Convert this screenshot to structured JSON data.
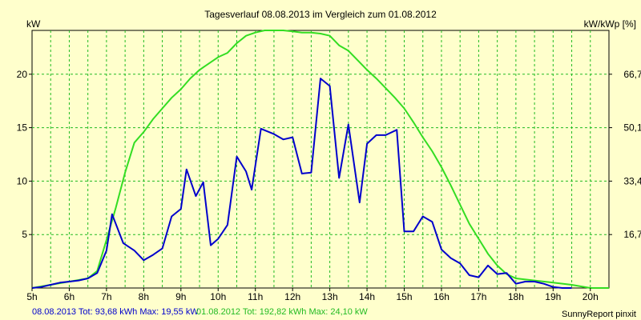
{
  "chart_data": {
    "type": "line",
    "title": "Tagesverlauf 08.08.2013 im Vergleich zum 01.08.2012",
    "ylabel_left": "kW",
    "ylabel_right": "kW/kWp [%]",
    "xlim": [
      5,
      20.5
    ],
    "ylim": [
      0,
      24.1
    ],
    "grid": true,
    "x_ticks": [
      {
        "value": 5,
        "label": "5h"
      },
      {
        "value": 6,
        "label": "6h"
      },
      {
        "value": 7,
        "label": "7h"
      },
      {
        "value": 8,
        "label": "8h"
      },
      {
        "value": 9,
        "label": "9h"
      },
      {
        "value": 10,
        "label": "10h"
      },
      {
        "value": 11,
        "label": "11h"
      },
      {
        "value": 12,
        "label": "12h"
      },
      {
        "value": 13,
        "label": "13h"
      },
      {
        "value": 14,
        "label": "14h"
      },
      {
        "value": 15,
        "label": "15h"
      },
      {
        "value": 16,
        "label": "16h"
      },
      {
        "value": 17,
        "label": "17h"
      },
      {
        "value": 18,
        "label": "18h"
      },
      {
        "value": 19,
        "label": "19h"
      },
      {
        "value": 20,
        "label": "20h"
      }
    ],
    "y_ticks_left": [
      {
        "value": 5,
        "label": "5"
      },
      {
        "value": 10,
        "label": "10"
      },
      {
        "value": 15,
        "label": "15"
      },
      {
        "value": 20,
        "label": "20"
      }
    ],
    "y_ticks_right": [
      {
        "value": 5,
        "label": "16,7"
      },
      {
        "value": 10,
        "label": "33,4"
      },
      {
        "value": 15,
        "label": "50,1"
      },
      {
        "value": 20,
        "label": "66,7"
      }
    ],
    "x_grid": [
      5.5,
      6,
      6.5,
      7,
      7.5,
      8,
      8.5,
      9,
      9.5,
      10,
      10.5,
      11,
      11.5,
      12,
      12.5,
      13,
      13.5,
      14,
      14.5,
      15,
      15.5,
      16,
      16.5,
      17,
      17.5,
      18,
      18.5,
      19,
      19.5,
      20
    ],
    "y_grid": [
      5,
      10,
      15,
      20
    ],
    "series": [
      {
        "name": "08.08.2013",
        "color": "#0000cc",
        "points": [
          [
            5.0,
            0.0
          ],
          [
            5.25,
            0.1
          ],
          [
            5.5,
            0.3
          ],
          [
            5.75,
            0.5
          ],
          [
            6.0,
            0.6
          ],
          [
            6.25,
            0.7
          ],
          [
            6.5,
            0.9
          ],
          [
            6.75,
            1.4
          ],
          [
            7.0,
            3.5
          ],
          [
            7.15,
            6.9
          ],
          [
            7.45,
            4.2
          ],
          [
            7.75,
            3.5
          ],
          [
            8.0,
            2.6
          ],
          [
            8.25,
            3.1
          ],
          [
            8.5,
            3.7
          ],
          [
            8.75,
            6.7
          ],
          [
            9.0,
            7.4
          ],
          [
            9.15,
            11.1
          ],
          [
            9.4,
            8.6
          ],
          [
            9.6,
            9.9
          ],
          [
            9.8,
            4.0
          ],
          [
            10.0,
            4.6
          ],
          [
            10.25,
            5.9
          ],
          [
            10.5,
            12.3
          ],
          [
            10.75,
            10.9
          ],
          [
            10.9,
            9.2
          ],
          [
            11.15,
            14.9
          ],
          [
            11.5,
            14.4
          ],
          [
            11.75,
            13.9
          ],
          [
            12.0,
            14.1
          ],
          [
            12.25,
            10.7
          ],
          [
            12.5,
            10.8
          ],
          [
            12.75,
            19.6
          ],
          [
            13.0,
            18.9
          ],
          [
            13.25,
            10.3
          ],
          [
            13.5,
            15.3
          ],
          [
            13.8,
            8.0
          ],
          [
            14.0,
            13.5
          ],
          [
            14.25,
            14.3
          ],
          [
            14.5,
            14.3
          ],
          [
            14.8,
            14.8
          ],
          [
            15.0,
            5.3
          ],
          [
            15.25,
            5.3
          ],
          [
            15.5,
            6.7
          ],
          [
            15.75,
            6.2
          ],
          [
            16.0,
            3.6
          ],
          [
            16.25,
            2.8
          ],
          [
            16.5,
            2.3
          ],
          [
            16.75,
            1.2
          ],
          [
            17.0,
            1.0
          ],
          [
            17.25,
            2.1
          ],
          [
            17.5,
            1.3
          ],
          [
            17.75,
            1.4
          ],
          [
            18.0,
            0.4
          ],
          [
            18.25,
            0.6
          ],
          [
            18.5,
            0.6
          ],
          [
            18.75,
            0.4
          ],
          [
            19.0,
            0.1
          ],
          [
            19.25,
            0.0
          ],
          [
            19.5,
            0.0
          ]
        ]
      },
      {
        "name": "01.08.2012",
        "color": "#33dd22",
        "points": [
          [
            5.0,
            0.0
          ],
          [
            5.5,
            0.3
          ],
          [
            6.0,
            0.6
          ],
          [
            6.5,
            0.9
          ],
          [
            6.75,
            1.6
          ],
          [
            7.0,
            4.5
          ],
          [
            7.25,
            7.5
          ],
          [
            7.5,
            10.8
          ],
          [
            7.75,
            13.6
          ],
          [
            8.0,
            14.6
          ],
          [
            8.25,
            15.8
          ],
          [
            8.5,
            16.8
          ],
          [
            8.75,
            17.8
          ],
          [
            9.0,
            18.6
          ],
          [
            9.25,
            19.6
          ],
          [
            9.5,
            20.4
          ],
          [
            9.75,
            21.0
          ],
          [
            10.0,
            21.6
          ],
          [
            10.25,
            22.0
          ],
          [
            10.5,
            22.9
          ],
          [
            10.75,
            23.6
          ],
          [
            11.0,
            23.9
          ],
          [
            11.25,
            24.1
          ],
          [
            11.5,
            24.1
          ],
          [
            11.75,
            24.1
          ],
          [
            12.0,
            24.0
          ],
          [
            12.25,
            23.9
          ],
          [
            12.5,
            23.9
          ],
          [
            12.75,
            23.8
          ],
          [
            13.0,
            23.6
          ],
          [
            13.25,
            22.7
          ],
          [
            13.5,
            22.2
          ],
          [
            13.75,
            21.3
          ],
          [
            14.0,
            20.4
          ],
          [
            14.25,
            19.6
          ],
          [
            14.5,
            18.7
          ],
          [
            14.75,
            17.8
          ],
          [
            15.0,
            16.8
          ],
          [
            15.25,
            15.5
          ],
          [
            15.5,
            14.1
          ],
          [
            15.75,
            12.8
          ],
          [
            16.0,
            11.3
          ],
          [
            16.25,
            9.6
          ],
          [
            16.5,
            7.8
          ],
          [
            16.75,
            6.0
          ],
          [
            17.0,
            4.6
          ],
          [
            17.25,
            3.2
          ],
          [
            17.5,
            2.1
          ],
          [
            17.75,
            1.3
          ],
          [
            18.0,
            0.9
          ],
          [
            18.5,
            0.7
          ],
          [
            19.0,
            0.5
          ],
          [
            19.5,
            0.3
          ],
          [
            20.0,
            0.0
          ],
          [
            20.5,
            0.0
          ]
        ]
      }
    ],
    "footer": {
      "s1_text": "08.08.2013 Tot: 93,68 kWh Max: 19,55 kW",
      "s2_text": "01.08.2012 Tot: 192,82 kWh Max: 24,10 kW",
      "credit": "SunnyReport pinxit"
    }
  }
}
